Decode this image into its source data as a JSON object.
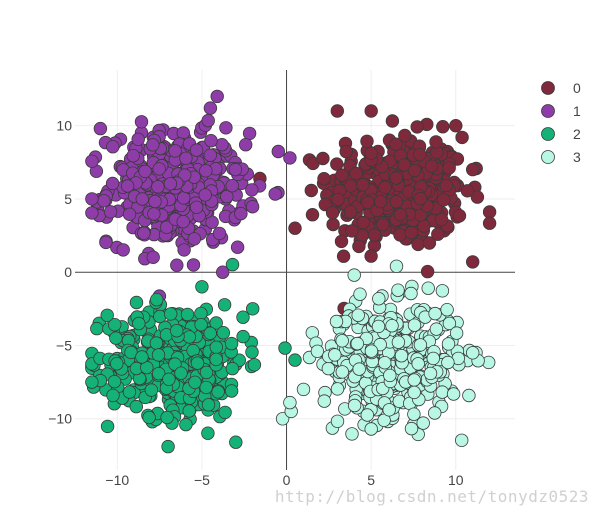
{
  "chart_data": {
    "type": "scatter",
    "title": "",
    "xlabel": "",
    "ylabel": "",
    "xlim": [
      -12.5,
      13.5
    ],
    "ylim": [
      -13.5,
      13.8
    ],
    "xticks": [
      -10,
      -5,
      0,
      5,
      10
    ],
    "yticks": [
      -10,
      -5,
      0,
      5,
      10
    ],
    "xtick_labels": [
      "−10",
      "−5",
      "0",
      "5",
      "10"
    ],
    "ytick_labels": [
      "−10",
      "−5",
      "0",
      "5",
      "10"
    ],
    "grid": true,
    "zero_lines": true,
    "legend_position": "top-right",
    "series": [
      {
        "name": "0",
        "color": "#7f2a3c",
        "center": [
          6.5,
          5.5
        ],
        "spread": [
          2.0,
          1.9
        ],
        "count": 420,
        "points": [
          [
            3,
            11
          ],
          [
            5,
            11
          ],
          [
            10,
            10
          ],
          [
            11,
            7
          ],
          [
            11,
            0.7
          ],
          [
            0.5,
            3
          ]
        ]
      },
      {
        "name": "1",
        "color": "#8e3ca8",
        "center": [
          -6.5,
          5.7
        ],
        "spread": [
          2.0,
          1.9
        ],
        "count": 420,
        "points": [
          [
            -11,
            9.8
          ],
          [
            -4.5,
            11.2
          ],
          [
            -4.1,
            12
          ],
          [
            -5.5,
            0.5
          ],
          [
            0.2,
            7.8
          ],
          [
            -11.5,
            5
          ]
        ]
      },
      {
        "name": "2",
        "color": "#14b277",
        "center": [
          -6.5,
          -6.0
        ],
        "spread": [
          2.0,
          1.9
        ],
        "count": 420,
        "points": [
          [
            -7,
            -11.9
          ],
          [
            -3,
            -11.6
          ],
          [
            -11,
            -7.4
          ],
          [
            -11.5,
            -7.5
          ],
          [
            -5,
            -1
          ],
          [
            -2,
            -2.5
          ],
          [
            0.5,
            -6
          ]
        ]
      },
      {
        "name": "3",
        "color": "#b7f7e4",
        "center": [
          6.2,
          -6.0
        ],
        "spread": [
          2.0,
          1.9
        ],
        "count": 420,
        "points": [
          [
            4,
            -0.2
          ],
          [
            6.5,
            0.4
          ],
          [
            0.2,
            -8.9
          ],
          [
            1,
            -8
          ],
          [
            11,
            -5.5
          ],
          [
            5,
            -10.7
          ]
        ]
      }
    ]
  },
  "watermark": "http://blog.csdn.net/tonydz0523"
}
